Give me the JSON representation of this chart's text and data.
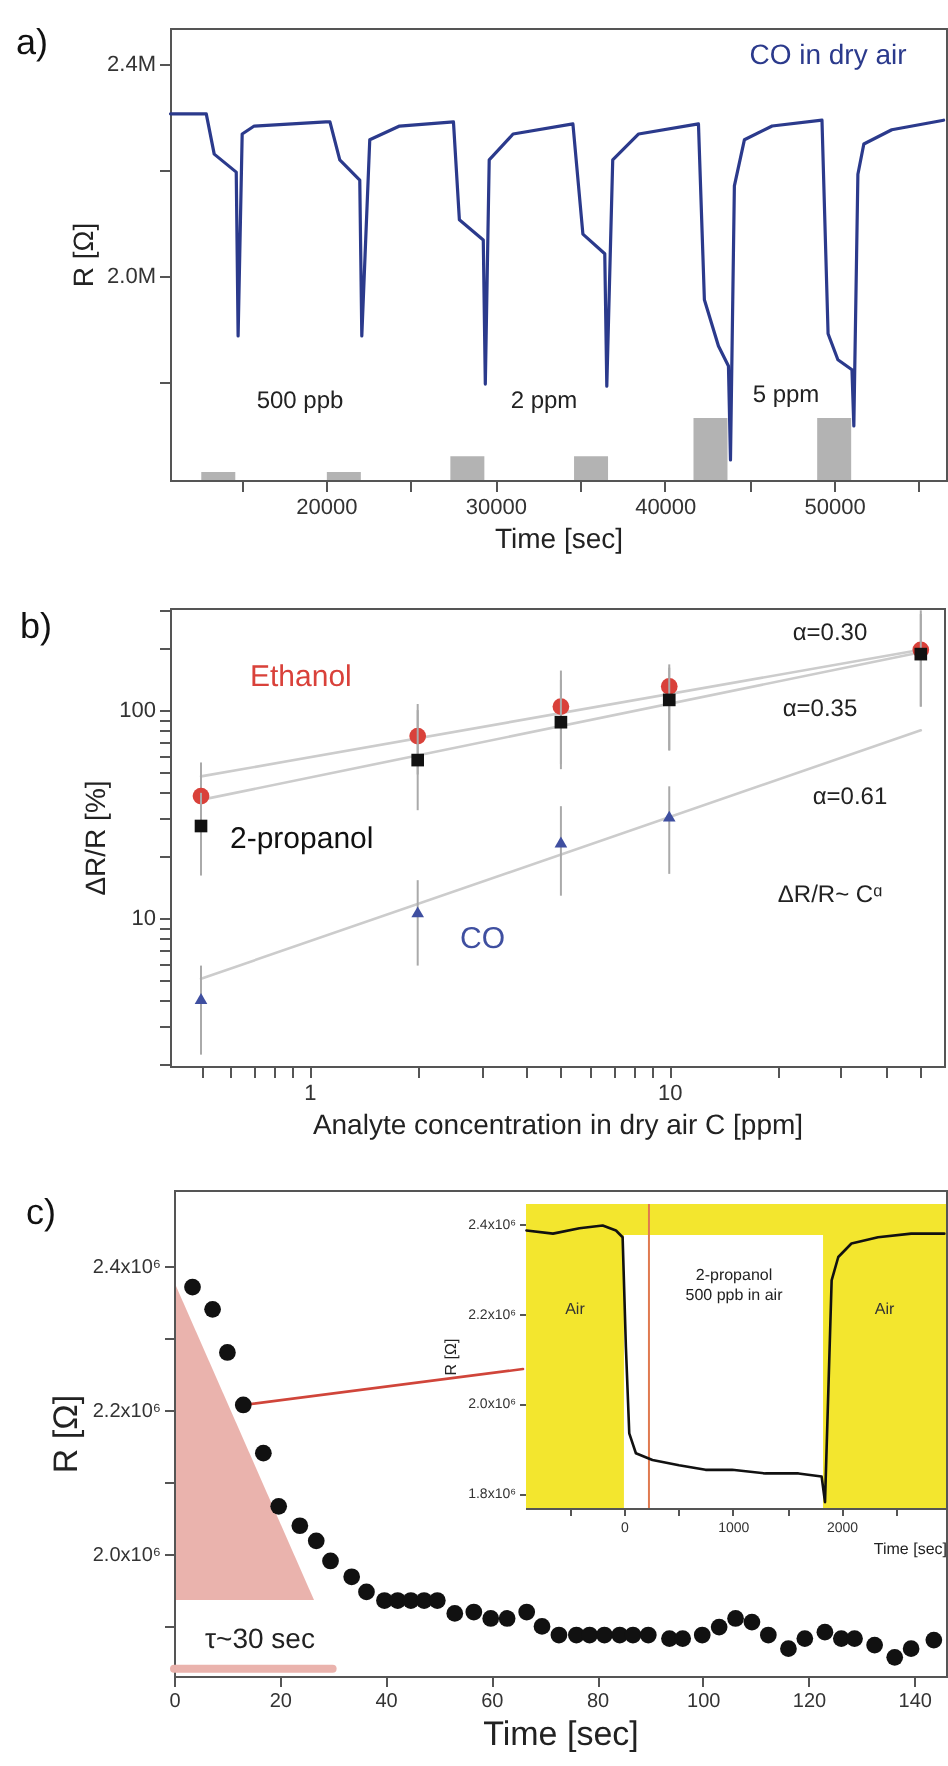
{
  "chart_data": [
    {
      "type": "line",
      "title": "a)",
      "xlabel": "Time [sec]",
      "ylabel": "R [Ω]",
      "xlim": [
        10800,
        56600
      ],
      "xticks": [
        {
          "value": 15000,
          "label": null
        },
        20000,
        {
          "value": 25000,
          "label": null
        },
        30000,
        {
          "value": 35000,
          "label": null
        },
        40000,
        {
          "value": 45000,
          "label": null
        },
        50000,
        {
          "value": 55000,
          "label": null
        }
      ],
      "ylim": [
        1615000,
        2468000
      ],
      "yticks": [
        {
          "value": 1800000,
          "label": null
        },
        {
          "value": 2000000,
          "label": "2.0M"
        },
        {
          "value": 2200000,
          "label": null
        },
        {
          "value": 2400000,
          "label": "2.4M"
        }
      ],
      "series": [
        {
          "name": "CO in dry air",
          "color": "#2b3a8c",
          "x": [
            10830,
            12940,
            13410,
            14710,
            14820,
            15060,
            15770,
            20000,
            20240,
            20820,
            22000,
            22120,
            22590,
            24350,
            27530,
            27880,
            29290,
            29410,
            29640,
            31050,
            34580,
            35170,
            36460,
            36580,
            36930,
            38460,
            41990,
            42340,
            43170,
            43760,
            43880,
            44110,
            44700,
            46340,
            49280,
            49640,
            50220,
            51050,
            51160,
            51400,
            51750,
            53400,
            56460
          ],
          "values": [
            2306000,
            2306000,
            2230000,
            2196000,
            1887000,
            2268000,
            2283000,
            2291000,
            2291000,
            2219000,
            2181000,
            1887000,
            2257000,
            2283000,
            2291000,
            2106000,
            2068000,
            1796000,
            2219000,
            2268000,
            2287000,
            2079000,
            2042000,
            1792000,
            2219000,
            2268000,
            2287000,
            1955000,
            1868000,
            1830000,
            1653000,
            2170000,
            2257000,
            2283000,
            2294000,
            1891000,
            1842000,
            1823000,
            1717000,
            2192000,
            2249000,
            2276000,
            2294000
          ]
        },
        {
          "type": "bar",
          "color": "#b3b3b3",
          "x": [
            13650,
            21060,
            28350,
            35650,
            42700,
            50000
          ],
          "base": [
            1615000,
            1615000,
            1615000,
            1615000,
            1615000,
            1615000
          ],
          "values": [
            15000,
            15000,
            45000,
            45000,
            117000,
            117000
          ]
        }
      ],
      "annotations": [
        "500 ppb",
        "2 ppm",
        "5 ppm"
      ]
    },
    {
      "type": "scatter",
      "title": "b)",
      "xlabel": "Analyte concentration in dry air   C [ppm]",
      "ylabel": "ΔR/R [%]",
      "log": "xy",
      "xlim": [
        0.41,
        58
      ],
      "xticks": [
        {
          "value": 0.5,
          "label": null
        },
        {
          "value": 0.6,
          "label": null
        },
        {
          "value": 0.7,
          "label": null
        },
        {
          "value": 0.8,
          "label": null
        },
        {
          "value": 0.9,
          "label": null
        },
        1,
        {
          "value": 2,
          "label": null
        },
        {
          "value": 3,
          "label": null
        },
        {
          "value": 4,
          "label": null
        },
        {
          "value": 5,
          "label": null
        },
        {
          "value": 6,
          "label": null
        },
        {
          "value": 7,
          "label": null
        },
        {
          "value": 8,
          "label": null
        },
        {
          "value": 9,
          "label": null
        },
        10,
        {
          "value": 20,
          "label": null
        },
        {
          "value": 30,
          "label": null
        },
        {
          "value": 40,
          "label": null
        },
        {
          "value": 50,
          "label": null
        }
      ],
      "ylim": [
        1.94,
        310
      ],
      "yticks": [
        {
          "value": 2,
          "label": null
        },
        {
          "value": 3,
          "label": null
        },
        {
          "value": 4,
          "label": null
        },
        {
          "value": 5,
          "label": null
        },
        {
          "value": 6,
          "label": null
        },
        {
          "value": 7,
          "label": null
        },
        {
          "value": 8,
          "label": null
        },
        {
          "value": 9,
          "label": null
        },
        10,
        {
          "value": 20,
          "label": null
        },
        {
          "value": 30,
          "label": null
        },
        {
          "value": 40,
          "label": null
        },
        {
          "value": 50,
          "label": null
        },
        {
          "value": 60,
          "label": null
        },
        {
          "value": 70,
          "label": null
        },
        {
          "value": 80,
          "label": null
        },
        {
          "value": 90,
          "label": null
        },
        100,
        {
          "value": 200,
          "label": null
        },
        {
          "value": 300,
          "label": null
        }
      ],
      "series": [
        {
          "type": "line",
          "color": "#cccccc",
          "x": [
            0.5,
            50
          ],
          "values": [
            48,
            195
          ]
        },
        {
          "type": "line",
          "color": "#cccccc",
          "x": [
            0.5,
            50
          ],
          "values": [
            37,
            190
          ]
        },
        {
          "type": "line",
          "color": "#cccccc",
          "x": [
            0.5,
            50
          ],
          "values": [
            5.1,
            80
          ]
        },
        {
          "name": "Ethanol",
          "color": "#d9413a",
          "marker": "circle",
          "x": [
            0.5,
            2,
            5,
            10,
            50
          ],
          "values": [
            38.6,
            75,
            104,
            130,
            195
          ],
          "errors": [
            [
              27,
              56
            ],
            [
              49,
              107
            ],
            [
              55,
              155
            ],
            [
              64,
              166
            ],
            [
              104,
              302
            ]
          ]
        },
        {
          "name": "2-propanol",
          "color": "#111111",
          "marker": "square",
          "x": [
            0.5,
            2,
            5,
            10,
            50
          ],
          "values": [
            27.7,
            57.5,
            87.5,
            112,
            186
          ],
          "errors": [
            [
              16,
              40
            ],
            [
              33,
              100
            ],
            [
              52,
              140
            ],
            [
              64,
              160
            ],
            [
              104,
              290
            ]
          ]
        },
        {
          "name": "CO",
          "color": "#3f4fa0",
          "marker": "triangle",
          "x": [
            0.5,
            2,
            5,
            10
          ],
          "values": [
            4.1,
            10.7,
            23.2,
            30.9
          ],
          "errors": [
            [
              2.2,
              5.9
            ],
            [
              5.9,
              15.2
            ],
            [
              12.8,
              34.5
            ],
            [
              16.3,
              43
            ]
          ]
        }
      ],
      "annotations": [
        "α=0.30",
        "α=0.35",
        "α=0.61",
        "ΔR/R~ Cᵅ"
      ]
    },
    {
      "type": "scatter",
      "title": "c)",
      "xlabel": "Time [sec]",
      "ylabel": "R [Ω]",
      "xlim": [
        0,
        146
      ],
      "xticks": [
        0,
        20,
        40,
        60,
        80,
        100,
        120,
        140
      ],
      "ylim": [
        1830000,
        2506000
      ],
      "yticks": [
        {
          "value": 1900000,
          "label": null
        },
        {
          "value": 2000000,
          "label": "2.0x10⁶"
        },
        {
          "value": 2100000,
          "label": null
        },
        {
          "value": 2200000,
          "label": "2.2x10⁶"
        },
        {
          "value": 2300000,
          "label": null
        },
        {
          "value": 2400000,
          "label": "2.4x10⁶"
        }
      ],
      "series": [
        {
          "type": "line",
          "color": "#eab3ad",
          "x": [
            0,
            30
          ],
          "values": [
            1840000,
            1840000
          ]
        },
        {
          "type": "line",
          "color": "#d0453a",
          "x": [
            13.1,
            66
          ],
          "values": [
            2207000,
            2257000
          ]
        },
        {
          "color": "#111111",
          "marker": "circle",
          "x": [
            3.5,
            7.3,
            10.1,
            13.1,
            16.9,
            19.8,
            23.8,
            26.9,
            29.6,
            33.6,
            36.4,
            39.8,
            42.3,
            44.8,
            47.3,
            49.8,
            53.1,
            56.7,
            59.9,
            63.0,
            66.7,
            69.6,
            72.8,
            76.1,
            78.6,
            81.4,
            84.3,
            86.8,
            89.7,
            93.7,
            96.2,
            99.9,
            103.1,
            106.2,
            109.3,
            112.4,
            116.2,
            119.3,
            123.1,
            126.2,
            128.7,
            132.5,
            136.3,
            139.4,
            143.7
          ],
          "values": [
            2371000,
            2340000,
            2280000,
            2207000,
            2140000,
            2066000,
            2039000,
            2018000,
            1990000,
            1968000,
            1947000,
            1935000,
            1935000,
            1935000,
            1935000,
            1935000,
            1917000,
            1919000,
            1910000,
            1910000,
            1919000,
            1899000,
            1887000,
            1887000,
            1887000,
            1887000,
            1887000,
            1887000,
            1887000,
            1882000,
            1882000,
            1887000,
            1898000,
            1910000,
            1905000,
            1887000,
            1868000,
            1882000,
            1891000,
            1882000,
            1882000,
            1873000,
            1856000,
            1868000,
            1880000
          ]
        }
      ],
      "annotations": [
        "τ~30 sec"
      ]
    },
    {
      "type": "line",
      "xlabel": "Time [sec]",
      "ylabel": "R [Ω]",
      "xlim": [
        -900,
        2960
      ],
      "xticks": [
        {
          "value": -500,
          "label": null
        },
        0,
        {
          "value": 500,
          "label": null
        },
        1000,
        {
          "value": 1500,
          "label": null
        },
        2000,
        {
          "value": 2500,
          "label": null
        }
      ],
      "ylim": [
        1767000,
        2444000
      ],
      "yticks": [
        {
          "value": 1800000,
          "label": "1.8x10⁶"
        },
        {
          "value": 2000000,
          "label": "2.0x10⁶"
        },
        {
          "value": 2200000,
          "label": "2.2x10⁶"
        },
        {
          "value": 2400000,
          "label": "2.4x10⁶"
        }
      ],
      "bands": [
        {
          "axis": "x",
          "from": -900,
          "to": 0,
          "label": "Air",
          "color": "#f3e62e"
        },
        {
          "axis": "x",
          "from": 1830,
          "to": 2960,
          "label": "Air",
          "color": "#f3e62e"
        },
        {
          "axis": "y",
          "from": 2375000,
          "to": 2444000,
          "color": "#f3e62e"
        }
      ],
      "ref_lines": [
        {
          "axis": "x",
          "value": 230,
          "color": "#e07a50"
        }
      ],
      "series": [
        {
          "color": "#111111",
          "x": [
            -896,
            -652,
            -409,
            -195,
            -73,
            -12,
            18,
            49,
            110,
            262,
            506,
            750,
            994,
            1299,
            1604,
            1817,
            1848,
            1909,
            1970,
            2091,
            2335,
            2640,
            2945
          ],
          "values": [
            2385000,
            2378000,
            2390000,
            2396000,
            2385000,
            2370000,
            2126000,
            1933000,
            1889000,
            1874000,
            1862000,
            1852000,
            1852000,
            1844000,
            1844000,
            1837000,
            1780000,
            2274000,
            2326000,
            2356000,
            2370000,
            2378000,
            2378000
          ]
        }
      ],
      "annotations": [
        "2-propanol\n500 ppb in air"
      ]
    }
  ]
}
